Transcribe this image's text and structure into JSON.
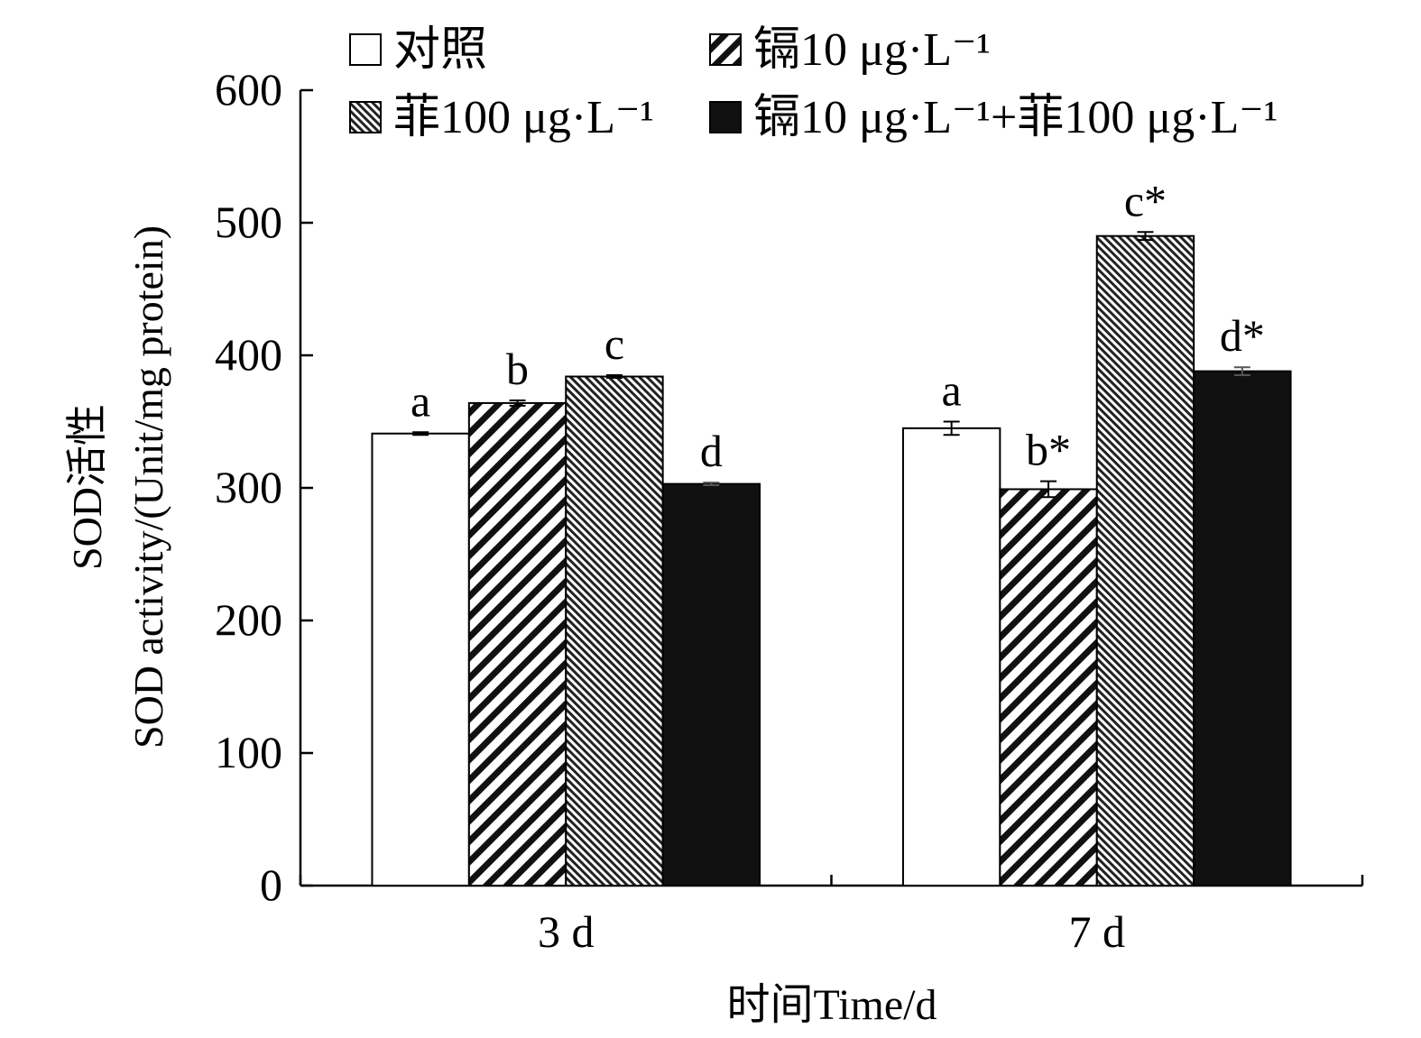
{
  "chart_data": {
    "type": "bar",
    "xlabel": "时间Time/d",
    "ylabel_cn": "SOD活性",
    "ylabel_en": "SOD activity/(Unit/mg protein)",
    "ylim": [
      0,
      600
    ],
    "yticks": [
      0,
      100,
      200,
      300,
      400,
      500,
      600
    ],
    "categories": [
      "3 d",
      "7 d"
    ],
    "series": [
      {
        "name": "对照",
        "pattern": "open",
        "values": [
          341,
          345
        ],
        "errors": [
          1,
          5
        ],
        "labels": [
          "a",
          "a"
        ]
      },
      {
        "name": "镉10 μg·L⁻¹",
        "pattern": "wide-hatch",
        "values": [
          364,
          299
        ],
        "errors": [
          2,
          6
        ],
        "labels": [
          "b",
          "b*"
        ]
      },
      {
        "name": "菲100 μg·L⁻¹",
        "pattern": "fine-hatch",
        "values": [
          384,
          490
        ],
        "errors": [
          1,
          3
        ],
        "labels": [
          "c",
          "c*"
        ]
      },
      {
        "name": "镉10 μg·L⁻¹+菲100 μg·L⁻¹",
        "pattern": "solid",
        "values": [
          303,
          388
        ],
        "errors": [
          1,
          3
        ],
        "labels": [
          "d",
          "d*"
        ]
      }
    ],
    "grid": false,
    "legend_position": "top"
  }
}
